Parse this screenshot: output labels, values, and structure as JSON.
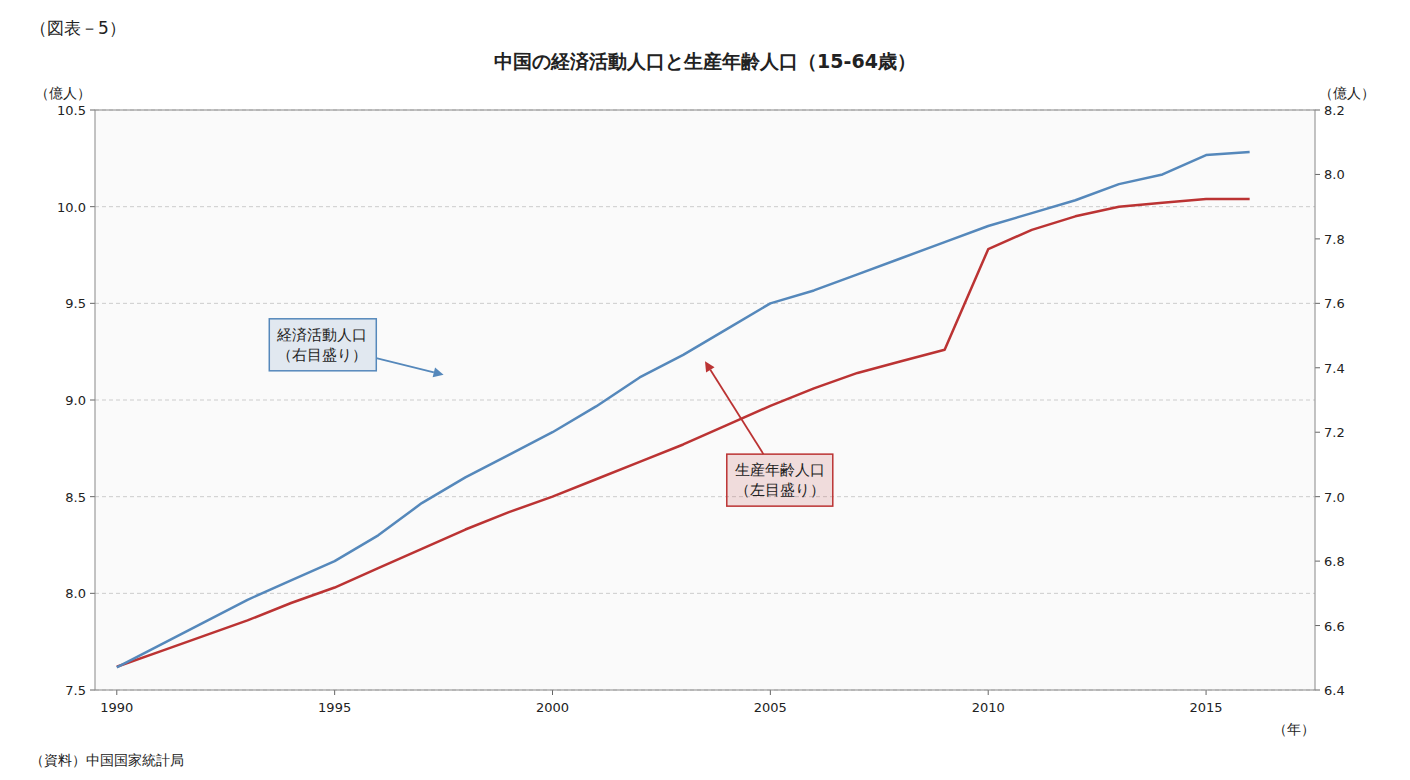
{
  "chart_data": {
    "type": "line",
    "header": "（図表－5）",
    "title": "中国の経済活動人口と生産年齢人口（15-64歳）",
    "footer": "（資料）中国国家統計局",
    "x_label": "（年）",
    "y_label": "（億人）",
    "y2_label": "（億人）",
    "x": [
      1990,
      1991,
      1992,
      1993,
      1994,
      1995,
      1996,
      1997,
      1998,
      1999,
      2000,
      2001,
      2002,
      2003,
      2004,
      2005,
      2006,
      2007,
      2008,
      2009,
      2010,
      2011,
      2012,
      2013,
      2014,
      2015,
      2016
    ],
    "xlim": [
      1989.5,
      2017.5
    ],
    "xticks": [
      1990,
      1995,
      2000,
      2005,
      2010,
      2015
    ],
    "ylim": [
      7.5,
      10.5
    ],
    "yticks": [
      7.5,
      {
        "value": 8,
        "label": "8.0"
      },
      8.5,
      {
        "value": 9,
        "label": "9.0"
      },
      9.5,
      {
        "value": 10,
        "label": "10.0"
      },
      10.5
    ],
    "y2lim": [
      6.4,
      8.2
    ],
    "y2ticks": [
      6.4,
      6.6,
      6.8,
      {
        "value": 7,
        "label": "7.0"
      },
      7.2,
      7.4,
      7.6,
      7.8,
      {
        "value": 8,
        "label": "8.0"
      },
      8.2
    ],
    "grid": true,
    "series": [
      {
        "color": "#bb3333",
        "values": [
          7.62,
          7.7,
          7.78,
          7.86,
          7.95,
          8.03,
          8.13,
          8.23,
          8.33,
          8.42,
          8.5,
          8.59,
          8.68,
          8.77,
          8.87,
          8.97,
          9.06,
          9.14,
          9.2,
          9.26,
          9.78,
          9.88,
          9.95,
          10.0,
          10.02,
          10.04,
          10.04
        ]
      },
      {
        "color": "#5588bb",
        "axis": "y2",
        "values": [
          6.47,
          6.54,
          6.61,
          6.68,
          6.74,
          6.8,
          6.88,
          6.98,
          7.06,
          7.13,
          7.2,
          7.28,
          7.37,
          7.44,
          7.52,
          7.6,
          7.64,
          7.69,
          7.74,
          7.79,
          7.84,
          7.88,
          7.92,
          7.97,
          8.0,
          8.06,
          8.07
        ]
      }
    ],
    "annotations": [
      {
        "text": "経済活動人口\n（右目盛り）",
        "color": "#5588bb",
        "x": 1997.5,
        "y": 9.13,
        "text_x": 1993.5,
        "text_y": 9.42
      },
      {
        "text": "生産年齢人口\n（左目盛り）",
        "color": "#bb3333",
        "x": 2003.5,
        "y": 9.2,
        "text_x": 2004.0,
        "text_y": 8.72
      }
    ]
  }
}
